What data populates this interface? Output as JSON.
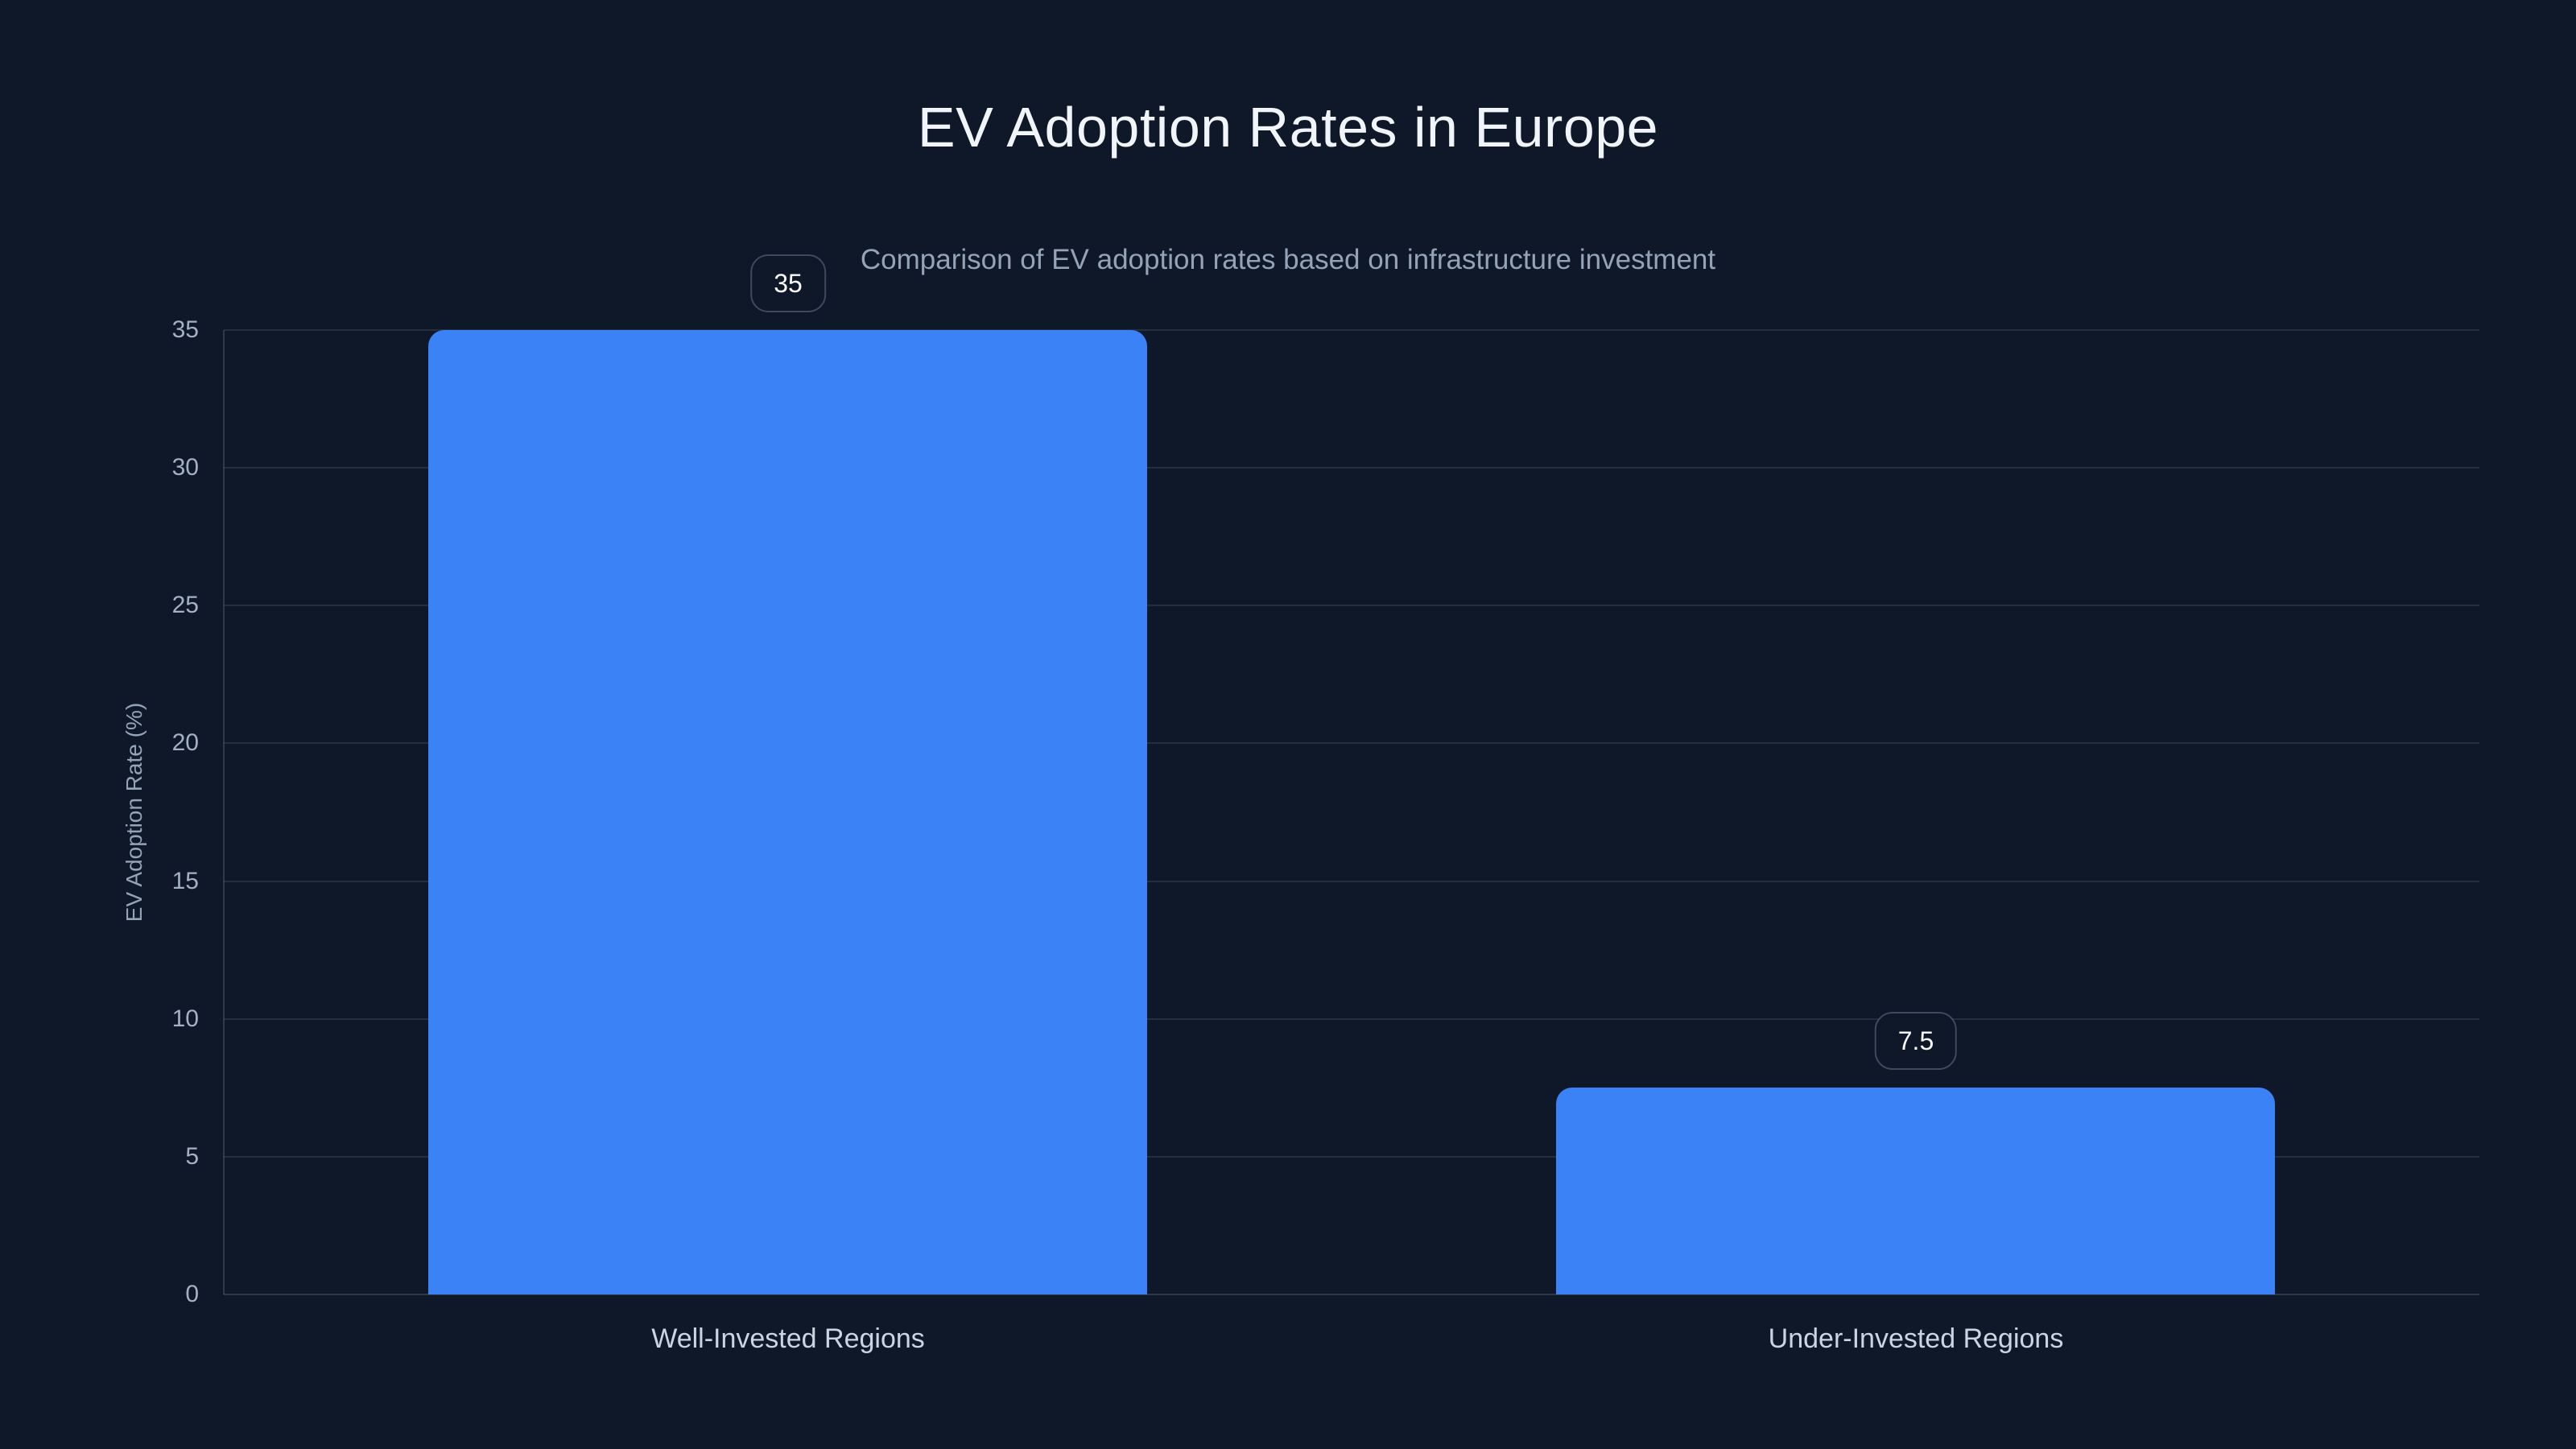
{
  "header": {
    "title": "EV Adoption Rates in Europe",
    "subtitle": "Comparison of EV adoption rates based on infrastructure investment"
  },
  "chart_data": {
    "type": "bar",
    "title": "EV Adoption Rates in Europe",
    "subtitle": "Comparison of EV adoption rates based on infrastructure investment",
    "categories": [
      "Well-Invested Regions",
      "Under-Invested Regions"
    ],
    "values": [
      35,
      7.5
    ],
    "value_labels": [
      "35",
      "7.5"
    ],
    "xlabel": "",
    "ylabel": "EV Adoption Rate (%)",
    "ylim": [
      0,
      35
    ],
    "yticks": [
      0,
      5,
      10,
      15,
      20,
      25,
      30,
      35
    ],
    "grid": true,
    "legend": false,
    "colors": {
      "background": "#0f1828",
      "bar": "#3b82f6",
      "grid": "rgba(148,163,184,0.16)",
      "axis_line": "rgba(148,163,184,0.24)",
      "title_text": "#f1f5f9",
      "subtitle_text": "#94a3b8",
      "tick_text": "#a3b1c2",
      "category_text": "#cbd5e1",
      "badge_border": "#3e4a5d",
      "badge_background": "#0f1828",
      "badge_text": "#f8fafc"
    }
  }
}
